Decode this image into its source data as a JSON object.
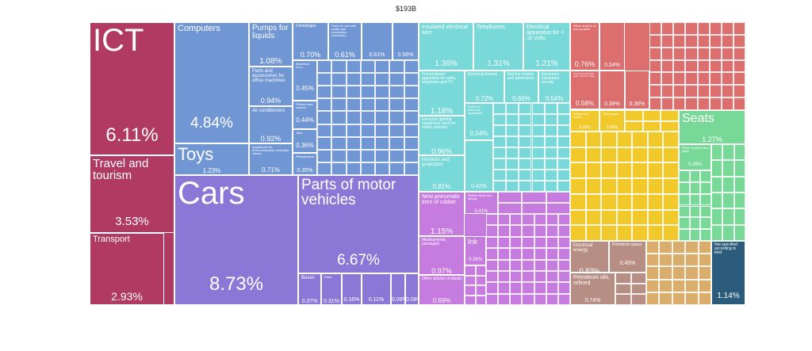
{
  "title": "$193B",
  "chart_data": {
    "type": "treemap",
    "title": "$193B",
    "colors": {
      "services": "#b03a62",
      "machinery": "#7096d4",
      "transportation": "#8b78d6",
      "electronics": "#79d8d8",
      "chemicals": "#c67bdf",
      "metals": "#dc6e6e",
      "paper_wood": "#f1c92b",
      "furniture_misc": "#78d898",
      "mineral": "#b68e84",
      "stone_glass": "#d9ad6c",
      "not_specified": "#2c5c7c"
    },
    "items": [
      {
        "label": "ICT",
        "share": 6.11,
        "group": "services"
      },
      {
        "label": "Travel and tourism",
        "share": 3.53,
        "group": "services"
      },
      {
        "label": "Transport",
        "share": 2.93,
        "group": "services"
      },
      {
        "label": "Computers",
        "share": 4.84,
        "group": "machinery"
      },
      {
        "label": "Pumps for liquids",
        "share": 1.08,
        "group": "machinery"
      },
      {
        "label": "Parts and accessories for office machines",
        "share": 0.94,
        "group": "machinery"
      },
      {
        "label": "Air conditioners",
        "share": 0.92,
        "group": "machinery"
      },
      {
        "label": "Appliances for thermostatically controlled valves",
        "share": 0.71,
        "group": "machinery"
      },
      {
        "label": "Centrifuges",
        "share": 0.7,
        "group": "machinery"
      },
      {
        "label": "Parts for use with hoists and excavation machinery",
        "share": 0.61,
        "group": "machinery"
      },
      {
        "label": "",
        "share": 0.61,
        "group": "machinery"
      },
      {
        "label": "",
        "share": 0.56,
        "group": "machinery"
      },
      {
        "label": "Machines n.e.c.",
        "share": 0.45,
        "group": "machinery"
      },
      {
        "label": "Printers and copiers",
        "share": 0.44,
        "group": "machinery"
      },
      {
        "label": "Taps",
        "share": 0.36,
        "group": "machinery"
      },
      {
        "label": "Refrigerators",
        "share": 0.35,
        "group": "machinery"
      },
      {
        "label": "Toys",
        "share": 1.23,
        "group": "machinery"
      },
      {
        "label": "Cars",
        "share": 8.73,
        "group": "transportation"
      },
      {
        "label": "Parts of motor vehicles",
        "share": 6.67,
        "group": "transportation"
      },
      {
        "label": "Buses",
        "share": 0.37,
        "group": "transportation"
      },
      {
        "label": "Parts",
        "share": 0.31,
        "group": "transportation"
      },
      {
        "label": "",
        "share": 0.16,
        "group": "transportation"
      },
      {
        "label": "",
        "share": 0.11,
        "group": "transportation"
      },
      {
        "label": "",
        "share": 0.09,
        "group": "transportation"
      },
      {
        "label": "",
        "share": 0.08,
        "group": "transportation"
      },
      {
        "label": "Insulated electrical wire",
        "share": 1.36,
        "group": "electronics"
      },
      {
        "label": "Telephones",
        "share": 1.31,
        "group": "electronics"
      },
      {
        "label": "Electrical apparatus for < 1k volts",
        "share": 1.21,
        "group": "electronics"
      },
      {
        "label": "Transmission apparatus for radio, telephone and TV",
        "share": 1.18,
        "group": "electronics"
      },
      {
        "label": "Electrical boards",
        "share": 0.72,
        "group": "electronics"
      },
      {
        "label": "Electric motors and generators",
        "share": 0.65,
        "group": "electronics"
      },
      {
        "label": "Electronic integrated circuits",
        "share": 0.54,
        "group": "electronics"
      },
      {
        "label": "Electrical lighting equipment used for motor vehicles",
        "share": 0.96,
        "group": "electronics"
      },
      {
        "label": "Parts for electrical apparatus",
        "share": 0.54,
        "group": "electronics"
      },
      {
        "label": "Monitors and projectors",
        "share": 0.81,
        "group": "electronics"
      },
      {
        "label": "",
        "share": 0.42,
        "group": "electronics"
      },
      {
        "label": "New pneumatic tires of rubber",
        "share": 1.15,
        "group": "chemicals"
      },
      {
        "label": "Medicaments, packaged",
        "share": 0.97,
        "group": "chemicals"
      },
      {
        "label": "Other articles of plastic",
        "share": 0.69,
        "group": "chemicals"
      },
      {
        "label": "Plastic tubes and fittings",
        "share": 0.41,
        "group": "chemicals"
      },
      {
        "label": "Ink",
        "share": 0.26,
        "group": "chemicals"
      },
      {
        "label": "Other articles of iron or steel",
        "share": 0.76,
        "group": "metals"
      },
      {
        "label": "Structures and their parts, of iron or steel",
        "share": 0.58,
        "group": "metals"
      },
      {
        "label": "",
        "share": 0.39,
        "group": "metals"
      },
      {
        "label": "",
        "share": 0.36,
        "group": "metals"
      },
      {
        "label": "",
        "share": 0.34,
        "group": "metals"
      },
      {
        "label": "Seats",
        "share": 1.27,
        "group": "furniture_misc"
      },
      {
        "label": "Other furniture and parts",
        "share": 0.36,
        "group": "furniture_misc"
      },
      {
        "label": "Wheat and meslin",
        "share": 0.33,
        "group": "paper_wood"
      },
      {
        "label": "Toilet paper",
        "share": 0.33,
        "group": "paper_wood"
      },
      {
        "label": "Electrical energy",
        "share": 0.83,
        "group": "mineral"
      },
      {
        "label": "Petroleum gases",
        "share": 0.45,
        "group": "mineral"
      },
      {
        "label": "Petroleum oils, refined",
        "share": 0.74,
        "group": "mineral"
      },
      {
        "label": "Not specified according to kind",
        "share": 1.14,
        "group": "not_specified"
      }
    ]
  }
}
